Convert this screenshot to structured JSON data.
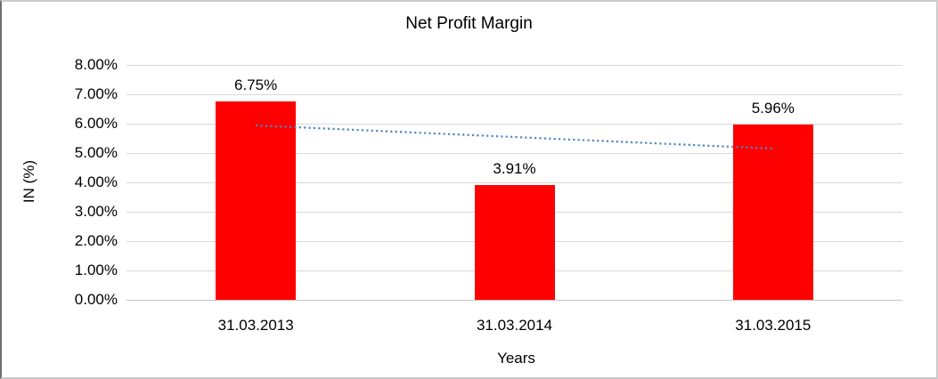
{
  "chart_data": {
    "type": "bar",
    "title": "Net Profit Margin",
    "xlabel": "Years",
    "ylabel": "IN (%)",
    "categories": [
      "31.03.2013",
      "31.03.2014",
      "31.03.2015"
    ],
    "series": [
      {
        "name": "Net Profit Margin",
        "values": [
          6.75,
          3.91,
          5.96
        ],
        "value_labels": [
          "6.75%",
          "3.91%",
          "5.96%"
        ],
        "color": "#ff0000"
      }
    ],
    "ylim": [
      0,
      8
    ],
    "ytick_step": 1,
    "ytick_labels": [
      "0.00%",
      "1.00%",
      "2.00%",
      "3.00%",
      "4.00%",
      "5.00%",
      "6.00%",
      "7.00%",
      "8.00%"
    ],
    "grid": true,
    "legend": false,
    "gridline_color": "#d9d9d9",
    "trendline": {
      "type": "linear",
      "style": "dotted",
      "color": "#4e86c8",
      "start_value": 5.94,
      "end_value": 5.15
    }
  }
}
